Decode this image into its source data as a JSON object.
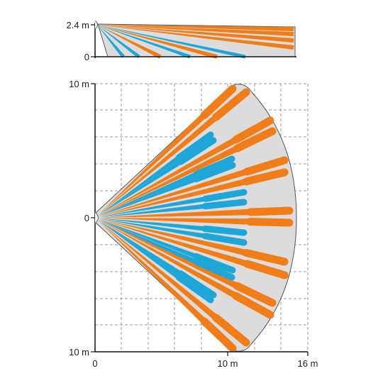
{
  "side_view": {
    "height_label": "2.4 m",
    "zero_label": "0"
  },
  "top_view": {
    "top_label": "10 m",
    "center_label": "0",
    "bottom_label": "10 m",
    "x_labels": [
      "0",
      "10 m",
      "16 m"
    ]
  },
  "colors": {
    "long_range_beam": "#f07d18",
    "short_range_beam": "#1ea6d8",
    "coverage_fill": "#dcdcdc",
    "outline": "#555555",
    "grid": "#9a9a9a"
  },
  "icons": [
    "detector-sensor-icon"
  ]
}
